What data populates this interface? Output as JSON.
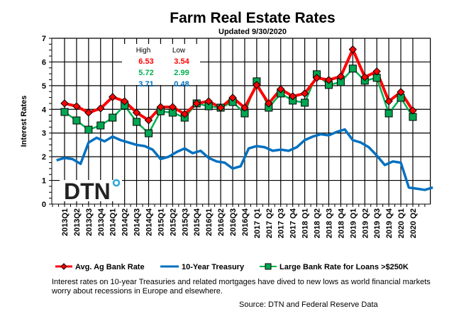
{
  "chart_data": {
    "type": "line",
    "title": "Farm Real Estate Rates",
    "subtitle": "Updated  9/30/2020",
    "ylabel": "Interest Rates",
    "ylim": [
      0,
      7
    ],
    "yticks": [
      "0",
      "1",
      "2",
      "3",
      "4",
      "5",
      "6",
      "7"
    ],
    "grid": true,
    "legend_placement": "bottom",
    "categories": [
      "2013Q1",
      "2013Q2",
      "2013Q3",
      "2013Q4",
      "2014Q1",
      "2014Q2",
      "2014Q3",
      "2014Q4",
      "2015Q1",
      "2015Q2",
      "2015Q3",
      "2015Q4",
      "2016Q1",
      "2016Q2",
      "2016Q3",
      "2016Q4",
      "2017 Q1",
      "2017 Q2",
      "2017 Q3",
      "2017 Q4",
      "2018 Q1",
      "2018 Q2",
      "2018 Q3",
      "2018 Q4",
      "2019 Q1",
      "2019 Q2",
      "2019 Q3",
      "2019 Q4",
      "2020 Q1",
      "2020 Q2"
    ],
    "series": [
      {
        "name": "Avg. Ag Bank Rate",
        "color": "#ff0000",
        "marker": "diamond",
        "values": [
          4.25,
          4.13,
          3.86,
          4.04,
          4.52,
          4.34,
          3.86,
          3.54,
          4.1,
          4.1,
          3.8,
          4.25,
          4.34,
          4.07,
          4.49,
          4.07,
          5.03,
          4.25,
          4.85,
          4.55,
          4.67,
          5.33,
          5.24,
          5.39,
          6.53,
          5.36,
          5.6,
          4.34,
          4.73,
          3.95
        ]
      },
      {
        "name": "10-Year Treasury",
        "color": "#0070c0",
        "marker": "none",
        "x": [
          "2012-11",
          "2013-01",
          "2013-03",
          "2013-05",
          "2013-07",
          "2013-09",
          "2013-11",
          "2014-01",
          "2014-03",
          "2014-05",
          "2014-07",
          "2014-09",
          "2014-11",
          "2015-01",
          "2015-03",
          "2015-05",
          "2015-07",
          "2015-09",
          "2015-11",
          "2016-01",
          "2016-03",
          "2016-05",
          "2016-07",
          "2016-09",
          "2016-11",
          "2017-01",
          "2017-03",
          "2017-05",
          "2017-07",
          "2017-09",
          "2017-11",
          "2018-01",
          "2018-03",
          "2018-05",
          "2018-07",
          "2018-09",
          "2018-11",
          "2019-01",
          "2019-03",
          "2019-05",
          "2019-07",
          "2019-09",
          "2019-11",
          "2020-01",
          "2020-03",
          "2020-05",
          "2020-07",
          "2020-09"
        ],
        "values": [
          1.85,
          1.95,
          1.9,
          1.7,
          2.6,
          2.8,
          2.65,
          2.85,
          2.7,
          2.6,
          2.5,
          2.45,
          2.3,
          1.9,
          2.0,
          2.2,
          2.35,
          2.15,
          2.25,
          1.95,
          1.8,
          1.75,
          1.5,
          1.6,
          2.35,
          2.45,
          2.4,
          2.25,
          2.3,
          2.25,
          2.4,
          2.7,
          2.85,
          2.95,
          2.9,
          3.05,
          3.15,
          2.7,
          2.6,
          2.4,
          2.05,
          1.65,
          1.8,
          1.75,
          0.7,
          0.65,
          0.6,
          0.7
        ]
      },
      {
        "name": "Large Bank Rate for Loans >$250K",
        "color": "#00b050",
        "marker": "square",
        "values": [
          3.89,
          3.53,
          3.14,
          3.32,
          3.65,
          4.16,
          3.47,
          2.99,
          3.92,
          3.86,
          3.65,
          4.25,
          4.13,
          4.07,
          4.31,
          3.83,
          5.18,
          4.07,
          4.67,
          4.37,
          4.28,
          5.48,
          5.03,
          5.15,
          5.72,
          5.21,
          5.33,
          3.83,
          4.49,
          3.68
        ]
      }
    ],
    "high_low_table": {
      "headers": [
        "High",
        "Low"
      ],
      "rows": [
        {
          "high": "6.53",
          "low": "3.54",
          "color": "#ff0000"
        },
        {
          "high": "5.72",
          "low": "2.99",
          "color": "#00b050"
        },
        {
          "high": "3.71",
          "low": "0.48",
          "color": "#0070c0"
        }
      ]
    }
  },
  "logo": "DTN",
  "note": "Interest rates on 10-year Treasuries and related mortgages have dived to new lows as world financial markets worry about recessions in Europe and elsewhere.",
  "source": "Source: DTN and Federal Reserve Data"
}
